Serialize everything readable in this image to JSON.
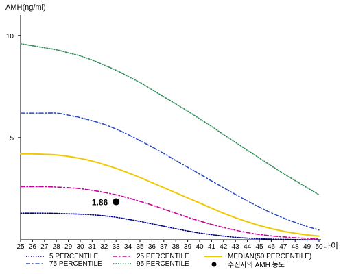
{
  "chart_data": {
    "type": "line",
    "ylabel": "AMH(ng/ml)",
    "xlabel": "나이",
    "x": [
      25,
      26,
      27,
      28,
      29,
      30,
      31,
      32,
      33,
      34,
      35,
      36,
      37,
      38,
      39,
      40,
      41,
      42,
      43,
      44,
      45,
      46,
      47,
      48,
      49,
      50
    ],
    "xlim": [
      25,
      50
    ],
    "ylim": [
      0,
      11
    ],
    "yticks": [
      5,
      10
    ],
    "grid": false,
    "legend_position": "bottom",
    "series": [
      {
        "name": "5 PERCENTILE",
        "color": "#000080",
        "dash": "dotted",
        "values": [
          1.3,
          1.3,
          1.3,
          1.29,
          1.27,
          1.25,
          1.22,
          1.17,
          1.1,
          1.0,
          0.9,
          0.78,
          0.66,
          0.54,
          0.43,
          0.33,
          0.25,
          0.18,
          0.12,
          0.08,
          0.05,
          0.03,
          0.02,
          0.01,
          0.0,
          0.0
        ]
      },
      {
        "name": "25 PERCENTILE",
        "color": "#cc0099",
        "dash": "dashdot",
        "values": [
          2.6,
          2.6,
          2.6,
          2.58,
          2.55,
          2.5,
          2.42,
          2.32,
          2.2,
          2.05,
          1.88,
          1.7,
          1.5,
          1.3,
          1.1,
          0.92,
          0.75,
          0.6,
          0.47,
          0.35,
          0.26,
          0.19,
          0.14,
          0.1,
          0.07,
          0.05
        ]
      },
      {
        "name": "MEDIAN(50 PERCENTILE)",
        "color": "#f0c800",
        "dash": "solid",
        "values": [
          4.2,
          4.2,
          4.18,
          4.15,
          4.08,
          3.98,
          3.85,
          3.68,
          3.5,
          3.28,
          3.05,
          2.8,
          2.55,
          2.3,
          2.05,
          1.8,
          1.55,
          1.3,
          1.08,
          0.88,
          0.7,
          0.55,
          0.42,
          0.32,
          0.24,
          0.18
        ]
      },
      {
        "name": "75 PERCENTILE",
        "color": "#2a4cc0",
        "dash": "dashdot",
        "values": [
          6.2,
          6.2,
          6.2,
          6.2,
          6.1,
          5.98,
          5.83,
          5.65,
          5.42,
          5.15,
          4.85,
          4.55,
          4.22,
          3.88,
          3.55,
          3.22,
          2.88,
          2.55,
          2.22,
          1.9,
          1.6,
          1.32,
          1.07,
          0.85,
          0.65,
          0.48
        ]
      },
      {
        "name": "95 PERCENTILE",
        "color": "#2e8b57",
        "dash": "dotted",
        "values": [
          9.6,
          9.5,
          9.4,
          9.3,
          9.15,
          9.0,
          8.8,
          8.55,
          8.3,
          8.0,
          7.7,
          7.35,
          7.0,
          6.65,
          6.3,
          5.92,
          5.55,
          5.15,
          4.77,
          4.38,
          4.0,
          3.62,
          3.25,
          2.9,
          2.55,
          2.2
        ]
      }
    ],
    "highlight": {
      "name": "수진자의 AMH 농도",
      "x": 33,
      "y": 1.86,
      "label": "1.86",
      "color": "#000000"
    }
  }
}
